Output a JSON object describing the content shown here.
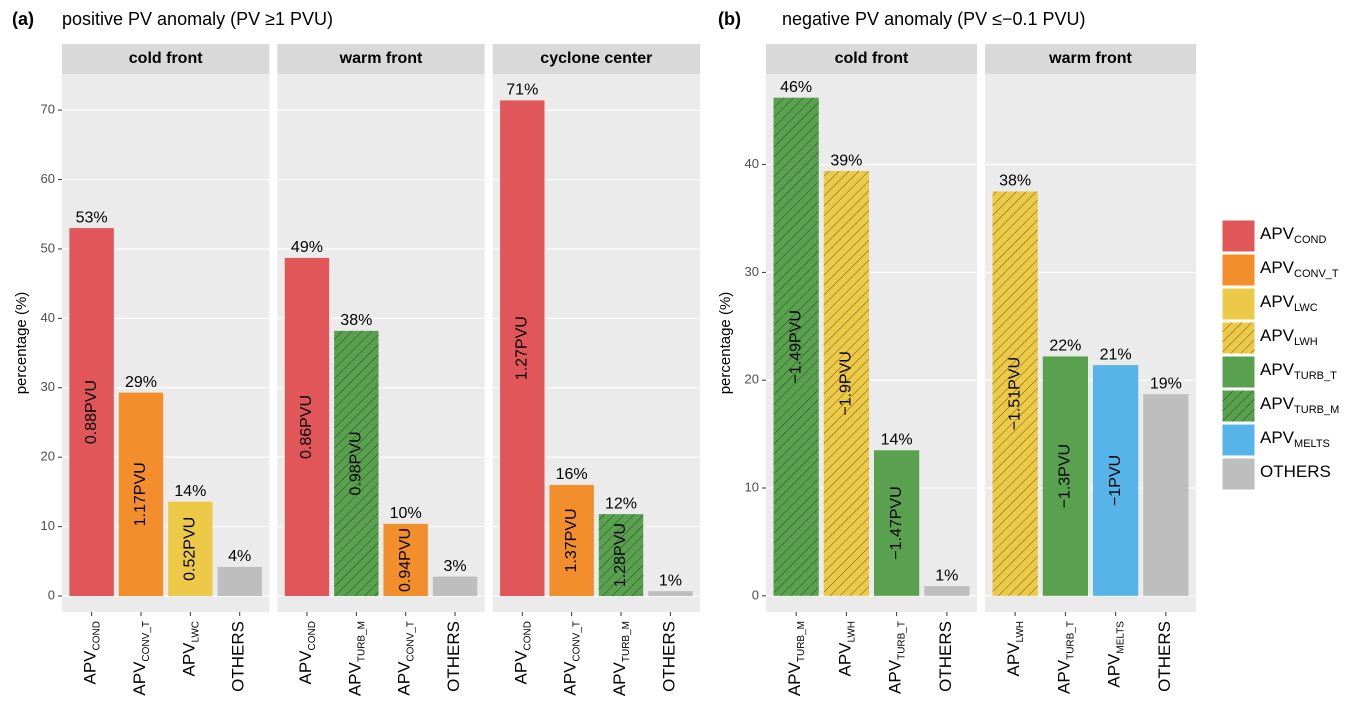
{
  "legend": [
    {
      "name": "APV",
      "sub": "COND",
      "color": "#E15759",
      "hatch": false
    },
    {
      "name": "APV",
      "sub": "CONV_T",
      "color": "#F28E2B",
      "hatch": false
    },
    {
      "name": "APV",
      "sub": "LWC",
      "color": "#EDC948",
      "hatch": false
    },
    {
      "name": "APV",
      "sub": "LWH",
      "color": "#EDC948",
      "hatch": true
    },
    {
      "name": "APV",
      "sub": "TURB_T",
      "color": "#59A14F",
      "hatch": false
    },
    {
      "name": "APV",
      "sub": "TURB_M",
      "color": "#59A14F",
      "hatch": true
    },
    {
      "name": "APV",
      "sub": "MELTS",
      "color": "#56B4E9",
      "hatch": false
    },
    {
      "name": "OTHERS",
      "color": "#BEBEBE",
      "hatch": false
    }
  ],
  "chart_data": [
    {
      "type": "bar",
      "tag": "(a)",
      "title": "positive PV anomaly (PV ≥1 PVU)",
      "y_label": "percentage (%)",
      "ylim": [
        -2.3,
        75.2
      ],
      "yticks": [
        0,
        10,
        20,
        30,
        40,
        50,
        60,
        70
      ],
      "grid": true,
      "facets": [
        {
          "name": "cold front",
          "categories": [
            {
              "name": "APV",
              "sub": "COND"
            },
            {
              "name": "APV",
              "sub": "CONV_T"
            },
            {
              "name": "APV",
              "sub": "LWC"
            },
            {
              "name": "OTHERS"
            }
          ],
          "values": [
            53,
            29.3,
            13.6,
            4.2
          ],
          "value_labels": [
            "53%",
            "29%",
            "14%",
            "4%"
          ],
          "inner_labels": [
            "0.88PVU",
            "1.17PVU",
            "0.52PVU",
            null
          ],
          "colors": [
            "#E15759",
            "#F28E2B",
            "#EDC948",
            "#BEBEBE"
          ],
          "hatch": [
            false,
            false,
            false,
            false
          ]
        },
        {
          "name": "warm front",
          "categories": [
            {
              "name": "APV",
              "sub": "COND"
            },
            {
              "name": "APV",
              "sub": "TURB_M"
            },
            {
              "name": "APV",
              "sub": "CONV_T"
            },
            {
              "name": "OTHERS"
            }
          ],
          "values": [
            48.7,
            38.2,
            10.4,
            2.8
          ],
          "value_labels": [
            "49%",
            "38%",
            "10%",
            "3%"
          ],
          "inner_labels": [
            "0.86PVU",
            "0.98PVU",
            "0.94PVU",
            null
          ],
          "colors": [
            "#E15759",
            "#59A14F",
            "#F28E2B",
            "#BEBEBE"
          ],
          "hatch": [
            false,
            true,
            false,
            false
          ]
        },
        {
          "name": "cyclone center",
          "categories": [
            {
              "name": "APV",
              "sub": "COND"
            },
            {
              "name": "APV",
              "sub": "CONV_T"
            },
            {
              "name": "APV",
              "sub": "TURB_M"
            },
            {
              "name": "OTHERS"
            }
          ],
          "values": [
            71.4,
            16,
            11.8,
            0.7
          ],
          "value_labels": [
            "71%",
            "16%",
            "12%",
            "1%"
          ],
          "inner_labels": [
            "1.27PVU",
            "1.37PVU",
            "1.28PVU",
            null
          ],
          "colors": [
            "#E15759",
            "#F28E2B",
            "#59A14F",
            "#BEBEBE"
          ],
          "hatch": [
            false,
            false,
            true,
            false
          ]
        }
      ]
    },
    {
      "type": "bar",
      "tag": "(b)",
      "title": "negative PV anomaly (PV ≤−0.1 PVU)",
      "y_label": "percentage (%)",
      "ylim": [
        -1.5,
        48.4
      ],
      "yticks": [
        0,
        10,
        20,
        30,
        40
      ],
      "grid": true,
      "facets": [
        {
          "name": "cold front",
          "categories": [
            {
              "name": "APV",
              "sub": "TURB_M"
            },
            {
              "name": "APV",
              "sub": "LWH"
            },
            {
              "name": "APV",
              "sub": "TURB_T"
            },
            {
              "name": "OTHERS"
            }
          ],
          "values": [
            46.2,
            39.4,
            13.5,
            0.9
          ],
          "value_labels": [
            "46%",
            "39%",
            "14%",
            "1%"
          ],
          "inner_labels": [
            "−1.49PVU",
            "−1.9PVU",
            "−1.47PVU",
            null
          ],
          "colors": [
            "#59A14F",
            "#EDC948",
            "#59A14F",
            "#BEBEBE"
          ],
          "hatch": [
            true,
            true,
            false,
            false
          ]
        },
        {
          "name": "warm front",
          "categories": [
            {
              "name": "APV",
              "sub": "LWH"
            },
            {
              "name": "APV",
              "sub": "TURB_T"
            },
            {
              "name": "APV",
              "sub": "MELTS"
            },
            {
              "name": "OTHERS"
            }
          ],
          "values": [
            37.5,
            22.2,
            21.4,
            18.7
          ],
          "value_labels": [
            "38%",
            "22%",
            "21%",
            "19%"
          ],
          "inner_labels": [
            "−1.51PVU",
            "−1.3PVU",
            "−1PVU",
            null
          ],
          "colors": [
            "#EDC948",
            "#59A14F",
            "#56B4E9",
            "#BEBEBE"
          ],
          "hatch": [
            true,
            false,
            false,
            false
          ]
        }
      ]
    }
  ]
}
